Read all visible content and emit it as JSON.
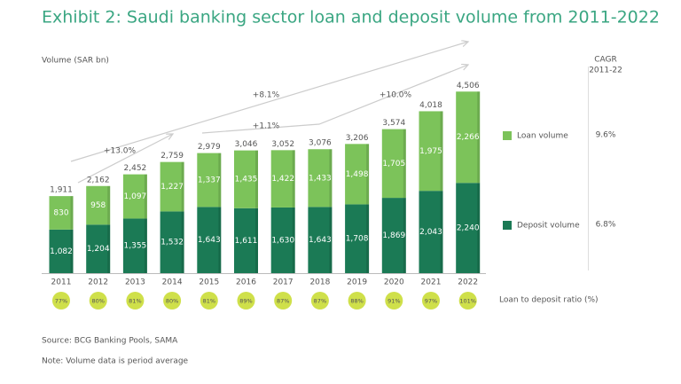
{
  "chart_data": {
    "type": "stacked_bar",
    "title": "Exhibit 2: Saudi banking sector loan and deposit volume from 2011-2022",
    "y_label": "Volume (SAR bn)",
    "categories": [
      "2011",
      "2012",
      "2013",
      "2014",
      "2015",
      "2016",
      "2017",
      "2018",
      "2019",
      "2020",
      "2021",
      "2022"
    ],
    "series": [
      {
        "name": "Deposit volume",
        "color": "#1b7a55",
        "cagr": "6.8%",
        "values": [
          1082,
          1204,
          1355,
          1532,
          1643,
          1611,
          1630,
          1643,
          1708,
          1869,
          2043,
          2240
        ],
        "value_labels": [
          "1,082",
          "1,204",
          "1,355",
          "1,532",
          "1,643",
          "1,611",
          "1,630",
          "1,643",
          "1,708",
          "1,869",
          "2,043",
          "2,240"
        ]
      },
      {
        "name": "Loan volume",
        "color": "#7cc35a",
        "cagr": "9.6%",
        "values": [
          830,
          958,
          1097,
          1227,
          1337,
          1435,
          1422,
          1433,
          1498,
          1705,
          1975,
          2266
        ],
        "value_labels": [
          "830",
          "958",
          "1,097",
          "1,227",
          "1,337",
          "1,435",
          "1,422",
          "1,433",
          "1,498",
          "1,705",
          "1,975",
          "2,266"
        ]
      }
    ],
    "totals": {
      "values": [
        1911,
        2162,
        2452,
        2759,
        2979,
        3046,
        3052,
        3076,
        3206,
        3574,
        4018,
        4506
      ],
      "value_labels": [
        "1,911",
        "2,162",
        "2,452",
        "2,759",
        "2,979",
        "3,046",
        "3,052",
        "3,076",
        "3,206",
        "3,574",
        "4,018",
        "4,506"
      ]
    },
    "ratio": {
      "name": "Loan to deposit ratio (%)",
      "color": "#cfe04a",
      "values": [
        77,
        80,
        81,
        80,
        81,
        89,
        87,
        87,
        88,
        91,
        97,
        101
      ],
      "value_labels": [
        "77%",
        "80%",
        "81%",
        "80%",
        "81%",
        "89%",
        "87%",
        "87%",
        "88%",
        "91%",
        "97%",
        "101%"
      ]
    },
    "cagr_title": "CAGR",
    "cagr_period": "2011-22",
    "annotations": [
      "+13.0%",
      "+8.1%",
      "+1.1%",
      "+10.0%"
    ],
    "ylim": [
      0,
      4600
    ],
    "source": "Source: BCG Banking Pools, SAMA",
    "note": "Note: Volume data is period average"
  }
}
